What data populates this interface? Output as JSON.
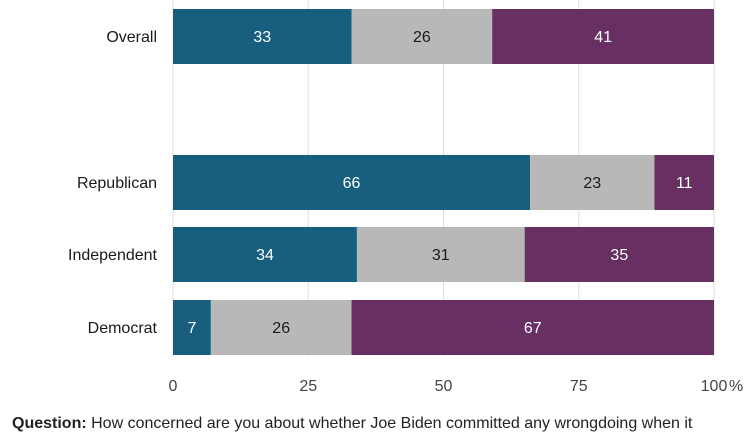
{
  "chart_data": {
    "type": "bar",
    "orientation": "horizontal",
    "stacked": true,
    "categories": [
      "Overall",
      "Republican",
      "Independent",
      "Democrat"
    ],
    "series": [
      {
        "values": [
          33,
          66,
          34,
          7
        ],
        "color": "#185e7e"
      },
      {
        "values": [
          26,
          23,
          31,
          26
        ],
        "color": "#b8b8b8"
      },
      {
        "values": [
          41,
          11,
          35,
          67
        ],
        "color": "#672f62"
      }
    ],
    "label_colors": [
      "#ffffff",
      "#1a1a1a",
      "#ffffff"
    ],
    "xlim": [
      0,
      100
    ],
    "xticks": [
      "0",
      "25",
      "50",
      "75",
      "100"
    ],
    "x_unit": "%",
    "grid": true,
    "legend": false
  },
  "footer": {
    "question_label": "Question:",
    "question_text": "How concerned are you about whether Joe Biden committed any wrongdoing when it"
  }
}
